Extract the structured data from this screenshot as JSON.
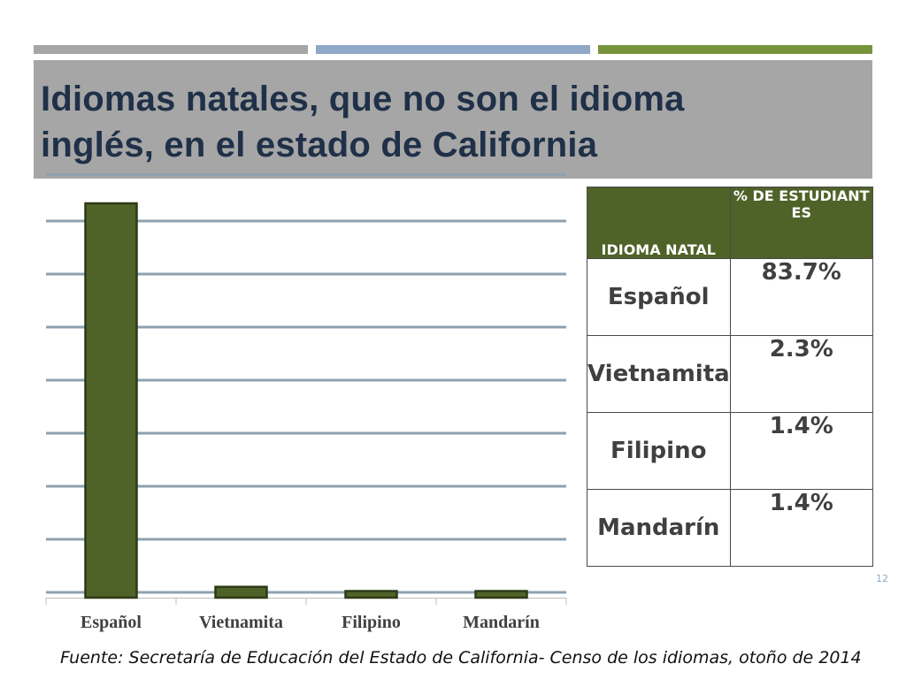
{
  "colors": {
    "deco_bars": [
      "#a6a6a6",
      "#8fa8c8",
      "#77933c"
    ],
    "title_bg": "#a6a6a6",
    "title_text": "#1f3048",
    "title_underline": "#8ea1b0",
    "grid": "#8ea1b0",
    "bar_fill": "#4f6228",
    "bar_stroke": "#2d3a16",
    "table_header": "#4f6228",
    "page_num": "#8fa8c8"
  },
  "title": {
    "line1": "Idiomas natales, que no son el idioma",
    "line2": "inglés, en el estado de California"
  },
  "table": {
    "headers": [
      "IDIOMA NATAL",
      "% DE ESTUDIANTES"
    ],
    "rows": [
      {
        "lang": "Español",
        "pct": "83.7%"
      },
      {
        "lang": "Vietnamita",
        "pct": "2.3%"
      },
      {
        "lang": "Filipino",
        "pct": "1.4%"
      },
      {
        "lang": "Mandarín",
        "pct": "1.4%"
      }
    ]
  },
  "page_number": "12",
  "source": "Fuente: Secretaría de Educación del Estado de California- Censo de los idiomas, otoño de 2014",
  "chart_data": {
    "type": "bar",
    "categories": [
      "Español",
      "Vietnamita",
      "Filipino",
      "Mandarín"
    ],
    "values": [
      83.7,
      2.3,
      1.4,
      1.4
    ],
    "title": "",
    "xlabel": "",
    "ylabel": "",
    "ylim": [
      0,
      80
    ],
    "grid": true,
    "y_tick_labels_visible": false,
    "legend": "none"
  }
}
